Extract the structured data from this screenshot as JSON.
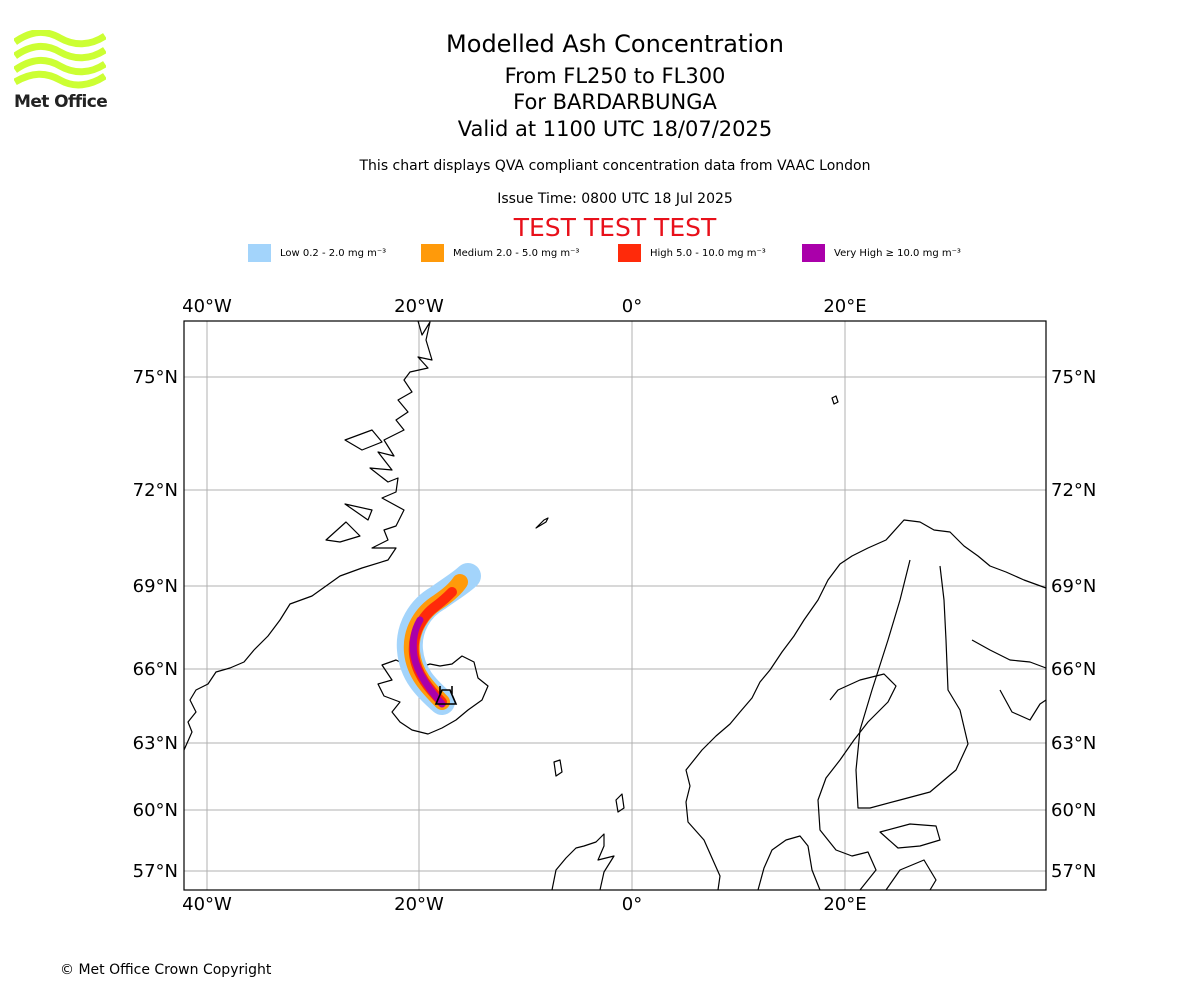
{
  "header": {
    "title": "Modelled Ash Concentration",
    "line1": "From FL250 to FL300",
    "line2": "For BARDARBUNGA",
    "line3": "Valid at 1100 UTC 18/07/2025",
    "note": "This chart displays QVA compliant concentration data from VAAC London",
    "issue": "Issue Time: 0800 UTC 18 Jul 2025",
    "test_banner": "TEST TEST TEST"
  },
  "logo": {
    "text": "Met Office",
    "color": "#ccff33"
  },
  "legend": [
    {
      "label": "Low 0.2 - 2.0 mg m⁻³",
      "color": "#a3d4fb"
    },
    {
      "label": "Medium 2.0 - 5.0 mg m⁻³",
      "color": "#ff9a0a"
    },
    {
      "label": "High 5.0 - 10.0 mg m⁻³",
      "color": "#ff2a0a"
    },
    {
      "label": "Very High ≥ 10.0 mg m⁻³",
      "color": "#aa00aa"
    }
  ],
  "map": {
    "lon_ticks": [
      "40°W",
      "20°W",
      "0°",
      "20°E"
    ],
    "lat_ticks": [
      "75°N",
      "72°N",
      "69°N",
      "66°N",
      "63°N",
      "60°N",
      "57°N"
    ],
    "volcano_symbol": "volcano-icon"
  },
  "footer": {
    "copyright": "© Met Office Crown Copyright"
  }
}
